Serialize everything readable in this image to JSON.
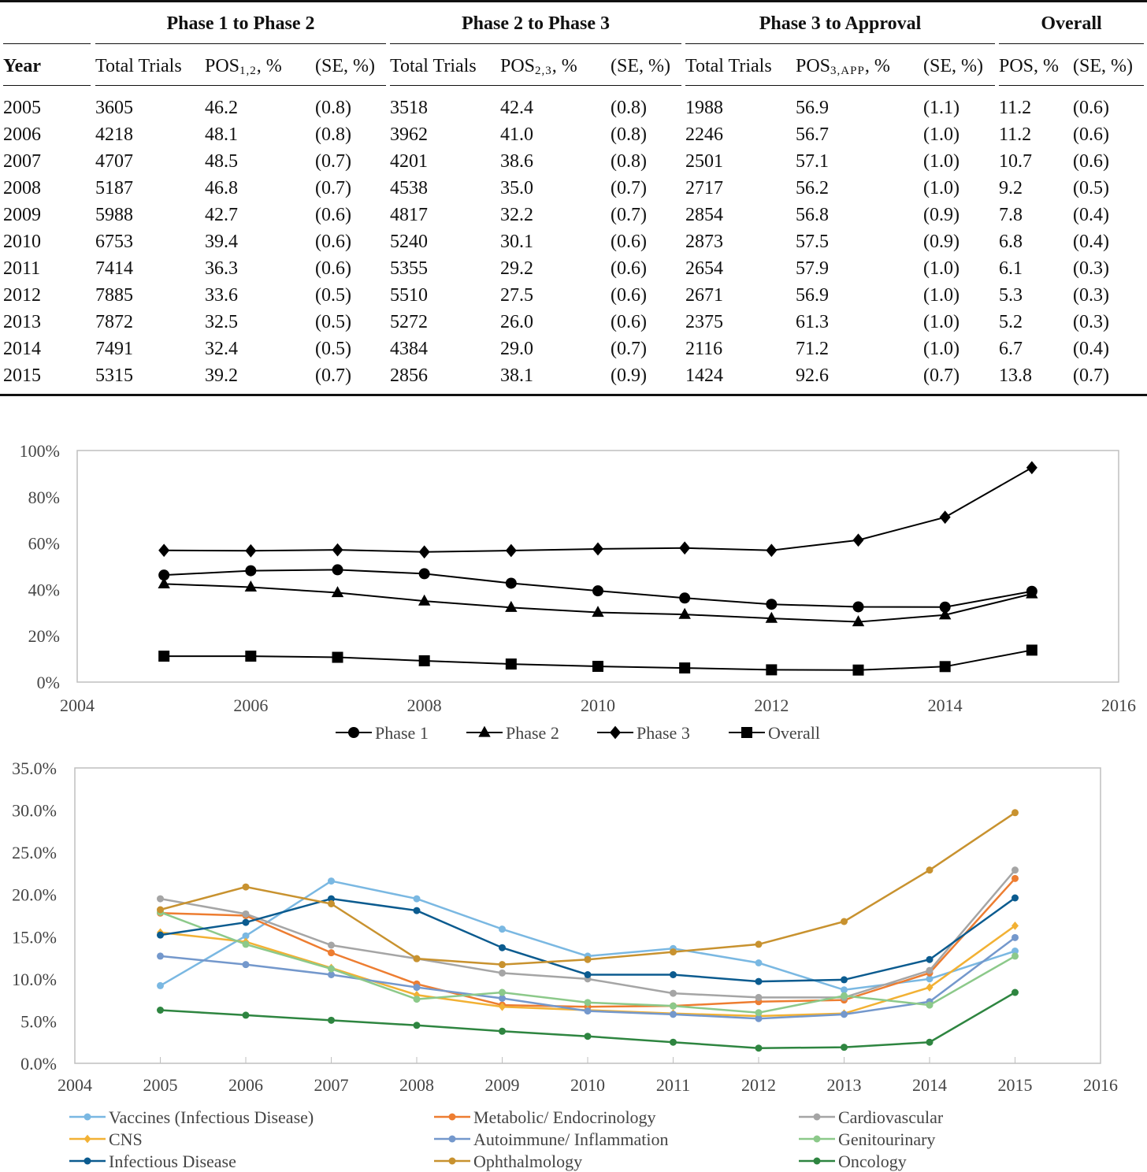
{
  "table": {
    "groups": [
      "Phase 1 to Phase 2",
      "Phase 2 to Phase 3",
      "Phase 3 to Approval",
      "Overall"
    ],
    "columns": [
      {
        "main": "Year",
        "sub": "",
        "suffix": ""
      },
      {
        "main": "Total Trials",
        "sub": "",
        "suffix": ""
      },
      {
        "main": "POS",
        "sub": "1,2",
        "suffix": ", %"
      },
      {
        "main": "(SE, %)",
        "sub": "",
        "suffix": ""
      },
      {
        "main": "Total Trials",
        "sub": "",
        "suffix": ""
      },
      {
        "main": "POS",
        "sub": "2,3",
        "suffix": ", %"
      },
      {
        "main": "(SE, %)",
        "sub": "",
        "suffix": ""
      },
      {
        "main": "Total Trials",
        "sub": "",
        "suffix": ""
      },
      {
        "main": "POS",
        "sub": "3,APP",
        "suffix": ", %"
      },
      {
        "main": "(SE, %)",
        "sub": "",
        "suffix": ""
      },
      {
        "main": "POS, %",
        "sub": "",
        "suffix": ""
      },
      {
        "main": "(SE, %)",
        "sub": "",
        "suffix": ""
      }
    ],
    "rows": [
      [
        "2005",
        "3605",
        "46.2",
        "(0.8)",
        "3518",
        "42.4",
        "(0.8)",
        "1988",
        "56.9",
        "(1.1)",
        "11.2",
        "(0.6)"
      ],
      [
        "2006",
        "4218",
        "48.1",
        "(0.8)",
        "3962",
        "41.0",
        "(0.8)",
        "2246",
        "56.7",
        "(1.0)",
        "11.2",
        "(0.6)"
      ],
      [
        "2007",
        "4707",
        "48.5",
        "(0.7)",
        "4201",
        "38.6",
        "(0.8)",
        "2501",
        "57.1",
        "(1.0)",
        "10.7",
        "(0.6)"
      ],
      [
        "2008",
        "5187",
        "46.8",
        "(0.7)",
        "4538",
        "35.0",
        "(0.7)",
        "2717",
        "56.2",
        "(1.0)",
        "9.2",
        "(0.5)"
      ],
      [
        "2009",
        "5988",
        "42.7",
        "(0.6)",
        "4817",
        "32.2",
        "(0.7)",
        "2854",
        "56.8",
        "(0.9)",
        "7.8",
        "(0.4)"
      ],
      [
        "2010",
        "6753",
        "39.4",
        "(0.6)",
        "5240",
        "30.1",
        "(0.6)",
        "2873",
        "57.5",
        "(0.9)",
        "6.8",
        "(0.4)"
      ],
      [
        "2011",
        "7414",
        "36.3",
        "(0.6)",
        "5355",
        "29.2",
        "(0.6)",
        "2654",
        "57.9",
        "(1.0)",
        "6.1",
        "(0.3)"
      ],
      [
        "2012",
        "7885",
        "33.6",
        "(0.5)",
        "5510",
        "27.5",
        "(0.6)",
        "2671",
        "56.9",
        "(1.0)",
        "5.3",
        "(0.3)"
      ],
      [
        "2013",
        "7872",
        "32.5",
        "(0.5)",
        "5272",
        "26.0",
        "(0.6)",
        "2375",
        "61.3",
        "(1.0)",
        "5.2",
        "(0.3)"
      ],
      [
        "2014",
        "7491",
        "32.4",
        "(0.5)",
        "4384",
        "29.0",
        "(0.7)",
        "2116",
        "71.2",
        "(1.0)",
        "6.7",
        "(0.4)"
      ],
      [
        "2015",
        "5315",
        "39.2",
        "(0.7)",
        "2856",
        "38.1",
        "(0.9)",
        "1424",
        "92.6",
        "(0.7)",
        "13.8",
        "(0.7)"
      ]
    ]
  },
  "chart_data": [
    {
      "type": "line",
      "title": "",
      "xlabel": "",
      "ylabel": "",
      "x": [
        2005,
        2006,
        2007,
        2008,
        2009,
        2010,
        2011,
        2012,
        2013,
        2014,
        2015
      ],
      "xlim": [
        2004,
        2016
      ],
      "xticks": [
        "2004",
        "2006",
        "2008",
        "2010",
        "2012",
        "2014",
        "2016"
      ],
      "ylim": [
        0,
        100
      ],
      "yticks": [
        "0%",
        "20%",
        "40%",
        "60%",
        "80%",
        "100%"
      ],
      "grid": false,
      "legend": "bottom",
      "series": [
        {
          "name": "Phase 1",
          "marker": "circle",
          "color": "#000000",
          "values": [
            46.2,
            48.1,
            48.5,
            46.8,
            42.7,
            39.4,
            36.3,
            33.6,
            32.5,
            32.4,
            39.2
          ]
        },
        {
          "name": "Phase 2",
          "marker": "triangle",
          "color": "#000000",
          "values": [
            42.4,
            41.0,
            38.6,
            35.0,
            32.2,
            30.1,
            29.2,
            27.5,
            26.0,
            29.0,
            38.1
          ]
        },
        {
          "name": "Phase 3",
          "marker": "diamond",
          "color": "#000000",
          "values": [
            56.9,
            56.7,
            57.1,
            56.2,
            56.8,
            57.5,
            57.9,
            56.9,
            61.3,
            71.2,
            92.6
          ]
        },
        {
          "name": "Overall",
          "marker": "square",
          "color": "#000000",
          "values": [
            11.2,
            11.2,
            10.7,
            9.2,
            7.8,
            6.8,
            6.1,
            5.3,
            5.2,
            6.7,
            13.8
          ]
        }
      ]
    },
    {
      "type": "line",
      "title": "",
      "xlabel": "",
      "ylabel": "",
      "x": [
        2005,
        2006,
        2007,
        2008,
        2009,
        2010,
        2011,
        2012,
        2013,
        2014,
        2015
      ],
      "xlim": [
        2004,
        2016
      ],
      "xticks": [
        "2004",
        "2005",
        "2006",
        "2007",
        "2008",
        "2009",
        "2010",
        "2011",
        "2012",
        "2013",
        "2014",
        "2015",
        "2016"
      ],
      "ylim": [
        0,
        35
      ],
      "yticks": [
        "0.0%",
        "5.0%",
        "10.0%",
        "15.0%",
        "20.0%",
        "25.0%",
        "30.0%",
        "35.0%"
      ],
      "grid": false,
      "legend": "bottom",
      "series": [
        {
          "name": "Vaccines (Infectious Disease)",
          "marker": "circle",
          "color": "#7ab8e2",
          "values": [
            9.2,
            15.1,
            21.6,
            19.5,
            15.9,
            12.7,
            13.6,
            11.9,
            8.7,
            10.0,
            13.3
          ]
        },
        {
          "name": "Metabolic/ Endocrinology",
          "marker": "circle",
          "color": "#ed7d31",
          "values": [
            17.8,
            17.5,
            13.1,
            9.4,
            6.9,
            6.7,
            6.8,
            7.3,
            7.5,
            10.7,
            21.9
          ]
        },
        {
          "name": "Cardiovascular",
          "marker": "circle",
          "color": "#a5a5a5",
          "values": [
            19.5,
            17.7,
            14.0,
            12.4,
            10.7,
            10.0,
            8.3,
            7.8,
            7.8,
            11.0,
            22.9
          ]
        },
        {
          "name": "CNS",
          "marker": "diamond",
          "color": "#f2b134",
          "values": [
            15.5,
            14.4,
            11.3,
            8.1,
            6.7,
            6.3,
            5.9,
            5.6,
            5.9,
            9.0,
            16.3
          ]
        },
        {
          "name": "Autoimmune/ Inflammation",
          "marker": "circle",
          "color": "#7498cc",
          "values": [
            12.7,
            11.7,
            10.5,
            9.0,
            7.7,
            6.2,
            5.8,
            5.3,
            5.8,
            7.3,
            14.9
          ]
        },
        {
          "name": "Genitourinary",
          "marker": "circle",
          "color": "#8cc98a",
          "values": [
            17.9,
            14.1,
            11.2,
            7.6,
            8.4,
            7.2,
            6.8,
            6.0,
            8.0,
            6.9,
            12.7
          ]
        },
        {
          "name": "Infectious Disease",
          "marker": "circle",
          "color": "#0b5b8f",
          "values": [
            15.2,
            16.7,
            19.5,
            18.1,
            13.7,
            10.5,
            10.5,
            9.7,
            9.9,
            12.3,
            19.6
          ]
        },
        {
          "name": "Ophthalmology",
          "marker": "circle",
          "color": "#c8922f",
          "values": [
            18.2,
            20.9,
            18.9,
            12.4,
            11.7,
            12.3,
            13.2,
            14.1,
            16.8,
            22.9,
            29.7
          ]
        },
        {
          "name": "Oncology",
          "marker": "circle",
          "color": "#2e8540",
          "values": [
            6.3,
            5.7,
            5.1,
            4.5,
            3.8,
            3.2,
            2.5,
            1.8,
            1.9,
            2.5,
            8.4
          ]
        }
      ]
    }
  ]
}
